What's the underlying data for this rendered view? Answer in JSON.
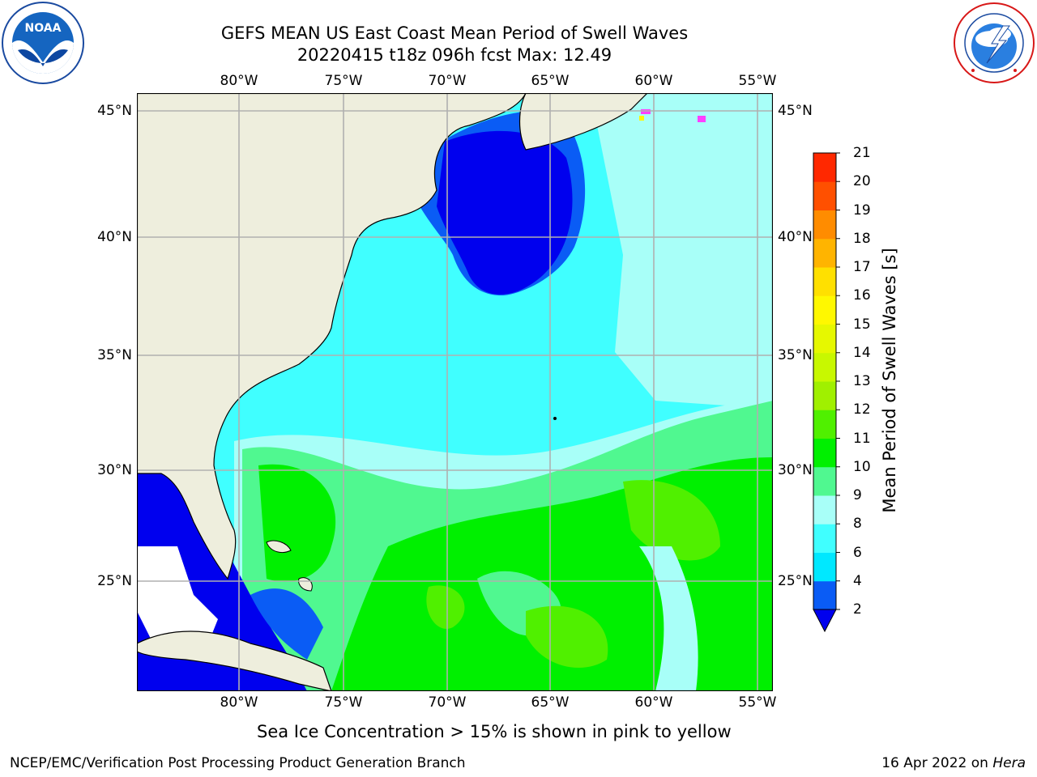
{
  "header": {
    "title_line1": "GEFS MEAN US East Coast Mean Period of Swell Waves",
    "title_line2": "20220415 t18z 096h fcst   Max: 12.49"
  },
  "logos": {
    "noaa": "NOAA",
    "nws": "NATIONAL WEATHER SERVICE"
  },
  "map": {
    "lon_labels": [
      "80°W",
      "75°W",
      "70°W",
      "65°W",
      "60°W",
      "55°W"
    ],
    "lat_labels": [
      "45°N",
      "40°N",
      "35°N",
      "30°N",
      "25°N"
    ],
    "colors": {
      "land": "#eeeedd",
      "grid": "#b0b0b0"
    }
  },
  "colorbar": {
    "label": "Mean Period of Swell Waves [s]",
    "ticks": [
      "2",
      "4",
      "6",
      "8",
      "9",
      "10",
      "11",
      "12",
      "13",
      "14",
      "15",
      "16",
      "17",
      "18",
      "19",
      "20",
      "21"
    ],
    "colors": [
      "#0a5cf5",
      "#00e8ff",
      "#40ffff",
      "#a8fff8",
      "#50f890",
      "#00f000",
      "#50f000",
      "#a0f000",
      "#c8f800",
      "#e6f800",
      "#fff800",
      "#ffe000",
      "#ffb400",
      "#ff8c00",
      "#ff5000",
      "#ff2800",
      "#ff0000"
    ],
    "under_color": "#0000ee"
  },
  "footer": {
    "note": "Sea Ice Concentration > 15% is shown in pink to yellow",
    "credit": "NCEP/EMC/Verification Post Processing Product Generation Branch",
    "date": "16 Apr 2022 on ",
    "machine": "Hera"
  }
}
